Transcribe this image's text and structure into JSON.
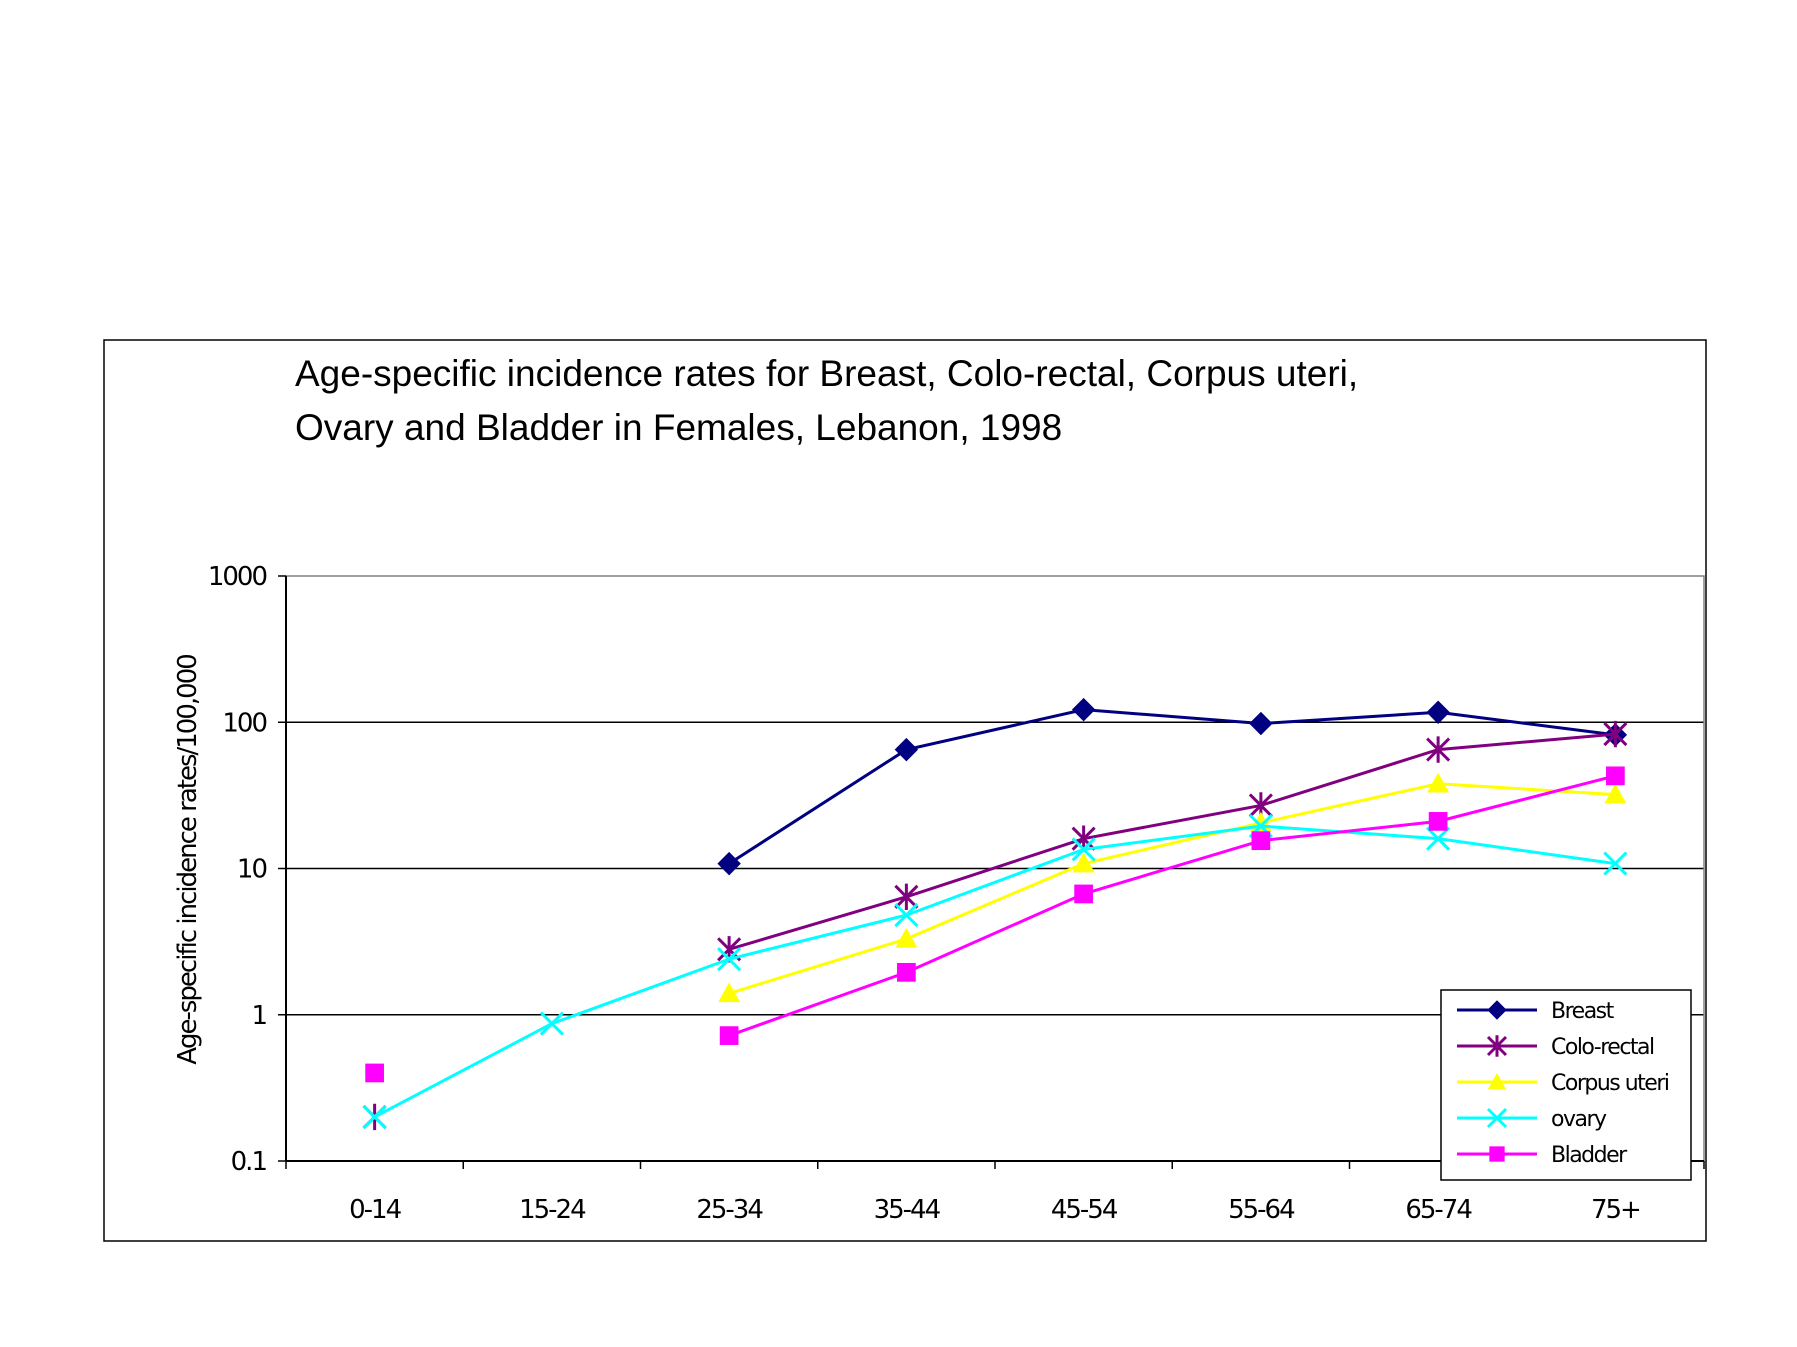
{
  "chart_data": {
    "type": "line",
    "title_lines": [
      "Age-specific incidence rates for Breast, Colo-rectal, Corpus uteri,",
      "Ovary and Bladder in Females, Lebanon, 1998"
    ],
    "xlabel": "",
    "ylabel": "Age-specific incidence rates/100,000",
    "y_scale": "log",
    "ylim": [
      0.1,
      1000
    ],
    "y_ticks": [
      "0.1",
      "1",
      "10",
      "100",
      "1000"
    ],
    "grid": "horizontal major lines",
    "legend_position": "bottom-right",
    "categories": [
      "0-14",
      "15-24",
      "25-34",
      "35-44",
      "45-54",
      "55-64",
      "65-74",
      "75+"
    ],
    "series": [
      {
        "name": "Breast",
        "color": "#000080",
        "marker": "diamond",
        "values": [
          null,
          null,
          10.8,
          65,
          122,
          98,
          117,
          82
        ]
      },
      {
        "name": "Colo-rectal",
        "color": "#800080",
        "marker": "asterisk",
        "values": [
          0.2,
          null,
          2.8,
          6.4,
          16,
          27,
          65,
          83
        ]
      },
      {
        "name": "Corpus uteri",
        "color": "#FFFF00",
        "marker": "triangle",
        "values": [
          null,
          null,
          1.4,
          3.3,
          10.8,
          20.5,
          38,
          32
        ]
      },
      {
        "name": "ovary",
        "color": "#00FFFF",
        "marker": "x",
        "values": [
          0.2,
          0.87,
          2.4,
          4.8,
          13.5,
          19.5,
          16,
          10.8
        ]
      },
      {
        "name": "Bladder",
        "color": "#FF00FF",
        "marker": "square",
        "values": [
          0.4,
          null,
          0.72,
          1.95,
          6.7,
          15.5,
          21,
          43
        ]
      }
    ]
  }
}
